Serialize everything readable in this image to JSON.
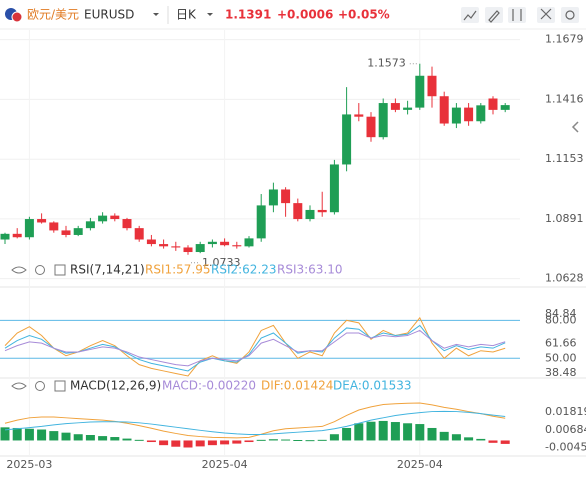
{
  "header": {
    "pair_name": "欧元/美元",
    "symbol": "EURUSD",
    "period": "日K",
    "price": "1.1391",
    "change": "+0.0006",
    "change_pct": "+0.05%"
  },
  "chart_data": [
    {
      "type": "candlestick",
      "up_color": "#1f9e55",
      "down_color": "#e8313a",
      "categories": [
        null,
        null,
        "2025-03",
        null,
        null,
        null,
        null,
        null,
        null,
        null,
        null,
        null,
        null,
        null,
        null,
        null,
        null,
        null,
        "2025-04",
        null,
        null,
        null,
        null,
        null,
        null,
        null,
        null,
        null,
        null,
        null,
        null,
        null,
        null,
        null,
        "2025-04",
        null,
        null,
        null,
        null,
        null,
        null,
        null
      ],
      "open": [
        1.08,
        1.0825,
        1.081,
        1.089,
        1.0875,
        1.084,
        1.082,
        1.085,
        1.088,
        1.0905,
        1.089,
        1.085,
        1.08,
        1.078,
        1.077,
        1.0765,
        1.0745,
        1.078,
        1.079,
        1.0775,
        1.077,
        1.0805,
        1.095,
        1.102,
        1.096,
        1.089,
        1.093,
        1.092,
        1.113,
        1.135,
        1.134,
        1.125,
        1.14,
        1.137,
        1.138,
        1.152,
        1.143,
        1.131,
        1.138,
        1.132,
        1.142,
        1.137
      ],
      "high": [
        1.083,
        1.085,
        1.09,
        1.0915,
        1.088,
        1.086,
        1.086,
        1.0895,
        1.092,
        1.0915,
        1.0895,
        1.086,
        1.082,
        1.08,
        1.079,
        1.0775,
        1.079,
        1.08,
        1.0805,
        1.079,
        1.0815,
        1.1,
        1.105,
        1.103,
        1.098,
        1.095,
        1.101,
        1.115,
        1.147,
        1.14,
        1.136,
        1.142,
        1.142,
        1.141,
        1.1573,
        1.156,
        1.145,
        1.14,
        1.14,
        1.14,
        1.143,
        1.14
      ],
      "low": [
        1.078,
        1.0805,
        1.08,
        1.087,
        1.083,
        1.081,
        1.0815,
        1.084,
        1.087,
        1.088,
        1.084,
        1.079,
        1.077,
        1.076,
        1.075,
        1.0733,
        1.074,
        1.0765,
        1.077,
        1.076,
        1.0765,
        1.079,
        1.092,
        1.09,
        1.088,
        1.088,
        1.09,
        1.091,
        1.11,
        1.132,
        1.123,
        1.124,
        1.136,
        1.135,
        1.137,
        1.138,
        1.13,
        1.129,
        1.13,
        1.131,
        1.135,
        1.136
      ],
      "close": [
        1.0825,
        1.081,
        1.089,
        1.0875,
        1.084,
        1.082,
        1.085,
        1.088,
        1.0905,
        1.089,
        1.085,
        1.08,
        1.078,
        1.077,
        1.0765,
        1.0745,
        1.078,
        1.079,
        1.0775,
        1.077,
        1.0805,
        1.095,
        1.102,
        1.096,
        1.089,
        1.093,
        1.092,
        1.113,
        1.135,
        1.134,
        1.125,
        1.14,
        1.137,
        1.138,
        1.152,
        1.143,
        1.131,
        1.138,
        1.132,
        1.139,
        1.137,
        1.1391
      ],
      "ylim": [
        1.06,
        1.173
      ],
      "yticks": [
        1.0628,
        1.0891,
        1.1153,
        1.1416,
        1.1679
      ],
      "grid": true
    },
    {
      "type": "line",
      "title": "RSI(7,14,21)",
      "ylim": [
        36,
        104
      ],
      "yticks": [
        {
          "value": 80,
          "label": "80.00"
        },
        84.84,
        61.66,
        {
          "value": 50,
          "label": "50.00"
        },
        38.48
      ],
      "hlines": [
        80,
        50
      ],
      "hline_color": "#5bb8e6",
      "series": [
        {
          "name": "RSI1:57.95",
          "color": "#f0a23c",
          "values": [
            60,
            70,
            75,
            68,
            58,
            52,
            55,
            60,
            64,
            60,
            52,
            45,
            42,
            40,
            38,
            36,
            48,
            52,
            48,
            46,
            55,
            72,
            76,
            62,
            50,
            55,
            52,
            70,
            80,
            78,
            65,
            72,
            68,
            70,
            82,
            62,
            50,
            58,
            52,
            56,
            55,
            57.95
          ]
        },
        {
          "name": "RSI2:62.23",
          "color": "#42b4df",
          "values": [
            58,
            64,
            68,
            65,
            58,
            54,
            55,
            58,
            61,
            59,
            54,
            49,
            46,
            44,
            42,
            40,
            47,
            50,
            48,
            47,
            53,
            66,
            70,
            62,
            54,
            56,
            55,
            66,
            74,
            73,
            66,
            70,
            68,
            69,
            76,
            64,
            56,
            60,
            57,
            59,
            58,
            62.23
          ]
        },
        {
          "name": "RSI3:63.10",
          "color": "#a78bd8",
          "values": [
            56,
            60,
            63,
            62,
            58,
            55,
            55,
            57,
            59,
            58,
            55,
            51,
            49,
            47,
            45,
            44,
            48,
            50,
            49,
            48,
            52,
            62,
            65,
            60,
            55,
            56,
            56,
            63,
            70,
            70,
            66,
            68,
            67,
            68,
            72,
            64,
            58,
            61,
            59,
            61,
            60,
            63.1
          ]
        }
      ]
    },
    {
      "type": "macd",
      "title": "MACD(12,26,9)",
      "ylim": [
        -0.0093,
        0.0355
      ],
      "yticks": [
        0.01819,
        0.00684,
        -0.00451
      ],
      "up_color": "#1f9e55",
      "down_color": "#e8313a",
      "series": [
        {
          "name": "MACD:-0.00220",
          "color": "#a78bd8",
          "kind": "bar",
          "values": [
            0.0084,
            0.008,
            0.0075,
            0.007,
            0.006,
            0.005,
            0.004,
            0.0035,
            0.0028,
            0.0022,
            0.0012,
            0.0004,
            -0.001,
            -0.003,
            -0.004,
            -0.0045,
            -0.0038,
            -0.003,
            -0.0025,
            -0.002,
            -0.001,
            0.0004,
            0.0008,
            0.0006,
            0.0003,
            0.0002,
            0.0004,
            0.004,
            0.008,
            0.011,
            0.012,
            0.0125,
            0.0118,
            0.011,
            0.0105,
            0.008,
            0.0055,
            0.004,
            0.002,
            0.001,
            -0.0015,
            -0.0022
          ]
        },
        {
          "name": "DIF:0.01424",
          "color": "#f0a23c",
          "kind": "line",
          "values": [
            0.011,
            0.013,
            0.0145,
            0.015,
            0.015,
            0.0145,
            0.014,
            0.0135,
            0.013,
            0.0122,
            0.011,
            0.0095,
            0.0078,
            0.006,
            0.0045,
            0.0032,
            0.0025,
            0.002,
            0.0018,
            0.0017,
            0.002,
            0.004,
            0.0062,
            0.0075,
            0.008,
            0.0085,
            0.009,
            0.012,
            0.016,
            0.0195,
            0.0215,
            0.023,
            0.0235,
            0.0238,
            0.024,
            0.0228,
            0.0212,
            0.02,
            0.0185,
            0.0172,
            0.0155,
            0.01424
          ]
        },
        {
          "name": "DEA:0.01533",
          "color": "#42b4df",
          "kind": "line",
          "values": [
            0.0068,
            0.0075,
            0.0082,
            0.009,
            0.01,
            0.0108,
            0.0113,
            0.0118,
            0.012,
            0.012,
            0.0118,
            0.0113,
            0.0105,
            0.0095,
            0.0085,
            0.0075,
            0.0065,
            0.0056,
            0.0048,
            0.0042,
            0.0038,
            0.0038,
            0.0042,
            0.0048,
            0.0053,
            0.0058,
            0.0063,
            0.0075,
            0.009,
            0.011,
            0.013,
            0.0145,
            0.016,
            0.017,
            0.0178,
            0.0185,
            0.0186,
            0.0185,
            0.018,
            0.0172,
            0.0162,
            0.01533
          ]
        }
      ]
    }
  ]
}
